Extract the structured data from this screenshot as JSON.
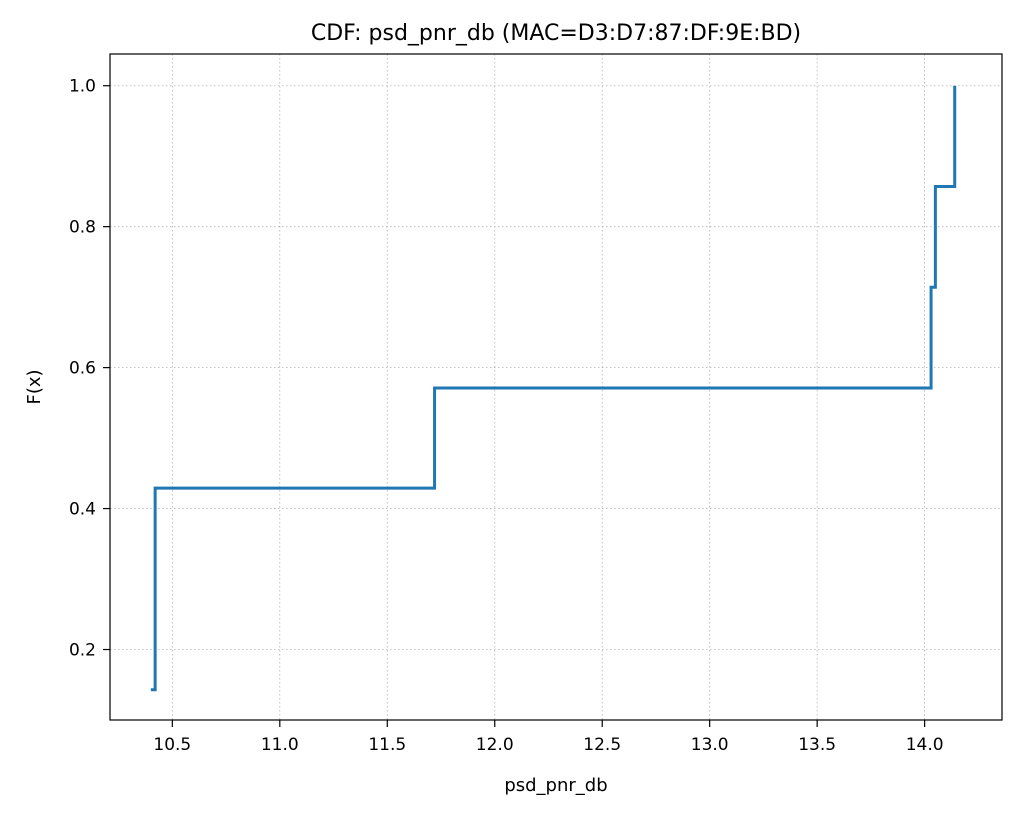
{
  "chart_data": {
    "type": "line",
    "step": true,
    "title": "CDF: psd_pnr_db (MAC=D3:D7:87:DF:9E:BD)",
    "xlabel": "psd_pnr_db",
    "ylabel": "F(x)",
    "xlim": [
      10.21,
      14.36
    ],
    "ylim": [
      0.1,
      1.045
    ],
    "grid": true,
    "line_color": "#1f77b4",
    "x_ticks": [
      10.5,
      11.0,
      11.5,
      12.0,
      12.5,
      13.0,
      13.5,
      14.0
    ],
    "x_tick_labels": [
      "10.5",
      "11.0",
      "11.5",
      "12.0",
      "12.5",
      "13.0",
      "13.5",
      "14.0"
    ],
    "y_ticks": [
      0.2,
      0.4,
      0.6,
      0.8,
      1.0
    ],
    "y_tick_labels": [
      "0.2",
      "0.4",
      "0.6",
      "0.8",
      "1.0"
    ],
    "series": [
      {
        "x": [
          10.4,
          10.42,
          10.42,
          11.72,
          11.72,
          14.03,
          14.03,
          14.05,
          14.05,
          14.14,
          14.14
        ],
        "y": [
          0.143,
          0.143,
          0.429,
          0.429,
          0.571,
          0.571,
          0.714,
          0.714,
          0.857,
          0.857,
          1.0
        ]
      }
    ]
  }
}
